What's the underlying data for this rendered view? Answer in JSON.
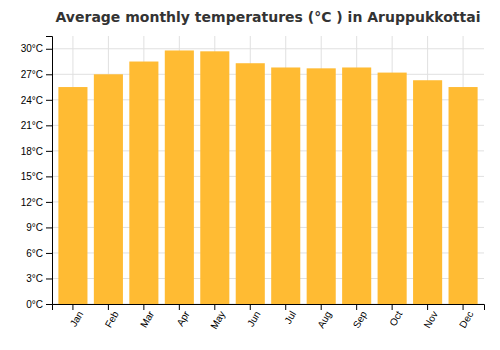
{
  "chart_data": {
    "type": "bar",
    "title": "Average monthly temperatures (°C ) in Aruppukkottai",
    "categories": [
      "Jan",
      "Feb",
      "Mar",
      "Apr",
      "May",
      "Jun",
      "Jul",
      "Aug",
      "Sep",
      "Oct",
      "Nov",
      "Dec"
    ],
    "values": [
      25.5,
      27.0,
      28.5,
      29.8,
      29.7,
      28.3,
      27.8,
      27.7,
      27.8,
      27.2,
      26.3,
      25.5
    ],
    "color": "#FFBB33",
    "ylim": [
      0,
      31.5
    ],
    "yticks": [
      {
        "value": 0,
        "label": "0°C"
      },
      {
        "value": 3,
        "label": "3°C"
      },
      {
        "value": 6,
        "label": "6°C"
      },
      {
        "value": 9,
        "label": "9°C"
      },
      {
        "value": 12,
        "label": "12°C"
      },
      {
        "value": 15,
        "label": "15°C"
      },
      {
        "value": 18,
        "label": "18°C"
      },
      {
        "value": 21,
        "label": "21°C"
      },
      {
        "value": 24,
        "label": "24°C"
      },
      {
        "value": 27,
        "label": "27°C"
      },
      {
        "value": 30,
        "label": "30°C"
      }
    ],
    "grid": true
  }
}
